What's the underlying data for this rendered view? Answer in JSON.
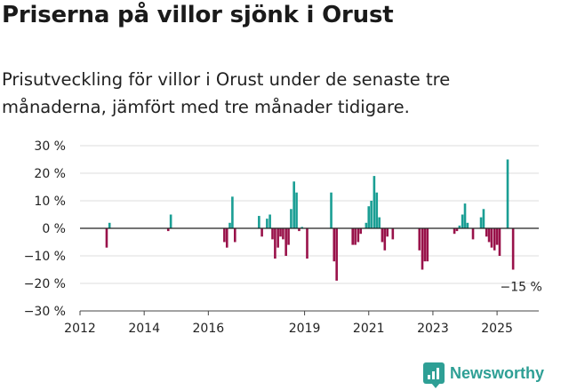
{
  "title": "Priserna på villor sjönk i Orust",
  "subtitle": "Prisutveckling för villor i Orust under de senaste tre månaderna, jämfört med tre månader tidigare.",
  "brand": "Newsworthy",
  "colors": {
    "positive": "#1a9e94",
    "negative": "#99124a",
    "zero_line": "#222222",
    "grid": "#dcdcdc",
    "brand": "#2e9f95"
  },
  "chart_data": {
    "type": "bar",
    "ylim": [
      -30,
      30
    ],
    "yticks": [
      30,
      20,
      10,
      0,
      -10,
      -20,
      -30
    ],
    "ytick_labels": [
      "30 %",
      "20 %",
      "10 %",
      "0 %",
      "−10 %",
      "−20 %",
      "−30 %"
    ],
    "xlim": [
      2012.0,
      2026.3
    ],
    "xticks": [
      2012,
      2014,
      2016,
      2019,
      2021,
      2023,
      2025
    ],
    "xtick_labels": [
      "2012",
      "2014",
      "2016",
      "2019",
      "2021",
      "2023",
      "2025"
    ],
    "annotation": {
      "text": "−15 %",
      "x": 2025.5,
      "y": -15
    },
    "series": [
      {
        "x": [
          2012.83,
          2012.92,
          2014.75,
          2014.83,
          2016.5,
          2016.58,
          2016.67,
          2016.75,
          2016.83,
          2017.58,
          2017.67,
          2017.83,
          2017.92,
          2018.0,
          2018.08,
          2018.17,
          2018.25,
          2018.33,
          2018.42,
          2018.5,
          2018.58,
          2018.67,
          2018.75,
          2018.83,
          2018.92,
          2019.08,
          2019.83,
          2019.92,
          2020.0,
          2020.5,
          2020.58,
          2020.67,
          2020.75,
          2020.92,
          2021.0,
          2021.08,
          2021.17,
          2021.25,
          2021.33,
          2021.42,
          2021.5,
          2021.58,
          2021.75,
          2022.58,
          2022.67,
          2022.75,
          2022.83,
          2023.67,
          2023.75,
          2023.83,
          2023.92,
          2024.0,
          2024.08,
          2024.25,
          2024.5,
          2024.58,
          2024.67,
          2024.75,
          2024.83,
          2024.92,
          2025.0,
          2025.08,
          2025.33,
          2025.5
        ],
        "values": [
          -7,
          2,
          -1,
          5,
          -5,
          -7,
          2,
          11.5,
          -5,
          4.5,
          -3,
          3.5,
          5,
          -4,
          -11,
          -7,
          -3,
          -4,
          -10,
          -6,
          7,
          17,
          13,
          -1,
          0.5,
          -11,
          13,
          -12,
          -19,
          -6,
          -6,
          -5,
          -2,
          2,
          8,
          10,
          19,
          13,
          4,
          -5,
          -8,
          -3,
          -4,
          -8,
          -15,
          -12,
          -12,
          -2,
          -1,
          1,
          5,
          9,
          2,
          -4,
          4,
          7,
          -3,
          -5,
          -7,
          -8,
          -6,
          -10,
          25,
          -15
        ]
      }
    ]
  }
}
